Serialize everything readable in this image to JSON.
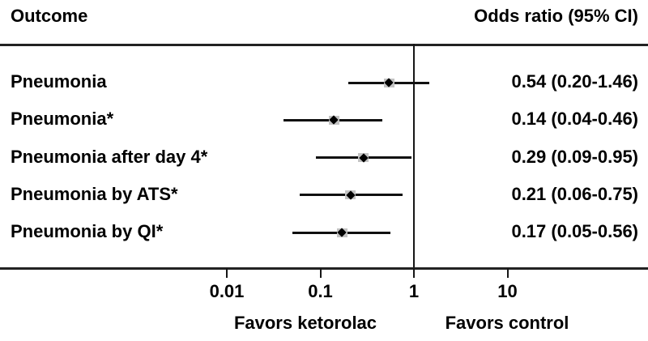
{
  "header": {
    "outcome": "Outcome",
    "odds_ratio": "Odds ratio (95% CI)"
  },
  "colors": {
    "background": "#ffffff",
    "text": "#000000",
    "line": "#161616",
    "marker": "#000000",
    "marker_halo": "#c3c3c3"
  },
  "chart_data": {
    "type": "forest",
    "scale": "log10",
    "title": "",
    "xlabel": "",
    "axis": {
      "ticks": [
        0.01,
        0.1,
        1,
        10
      ],
      "tick_labels": [
        "0.01",
        "0.1",
        "1",
        "10"
      ],
      "reference_line": 1
    },
    "rows": [
      {
        "label": "Pneumonia",
        "or": 0.54,
        "low": 0.2,
        "high": 1.46,
        "display": "0.54 (0.20-1.46)"
      },
      {
        "label": "Pneumonia*",
        "or": 0.14,
        "low": 0.04,
        "high": 0.46,
        "display": "0.14 (0.04-0.46)"
      },
      {
        "label": "Pneumonia after day 4*",
        "or": 0.29,
        "low": 0.09,
        "high": 0.95,
        "display": "0.29 (0.09-0.95)"
      },
      {
        "label": "Pneumonia by ATS*",
        "or": 0.21,
        "low": 0.06,
        "high": 0.75,
        "display": "0.21 (0.06-0.75)"
      },
      {
        "label": "Pneumonia by QI*",
        "or": 0.17,
        "low": 0.05,
        "high": 0.56,
        "display": "0.17 (0.05-0.56)"
      }
    ],
    "footer": {
      "left": "Favors ketorolac",
      "right": "Favors control"
    }
  }
}
